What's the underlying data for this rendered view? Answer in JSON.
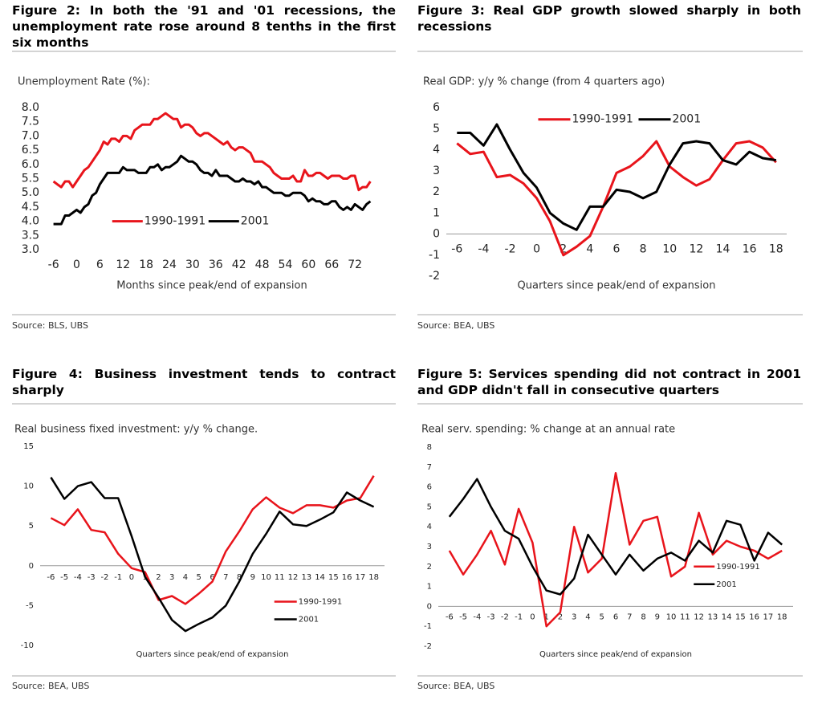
{
  "chart_data": [
    {
      "type": "line",
      "title": "Figure 2: In both the '91 and '01 recessions, the unemployment rate rose around 8 tenths in the first six months",
      "subtitle": "Unemployment Rate (%):",
      "xlabel": "Months since peak/end of expansion",
      "source": "Source: BLS, UBS",
      "legend": "lower-left",
      "x": [
        -6,
        -5,
        -4,
        -3,
        -2,
        -1,
        0,
        1,
        2,
        3,
        4,
        5,
        6,
        7,
        8,
        9,
        10,
        11,
        12,
        13,
        14,
        15,
        16,
        17,
        18,
        19,
        20,
        21,
        22,
        23,
        24,
        25,
        26,
        27,
        28,
        29,
        30,
        31,
        32,
        33,
        34,
        35,
        36,
        37,
        38,
        39,
        40,
        41,
        42,
        43,
        44,
        45,
        46,
        47,
        48,
        49,
        50,
        51,
        52,
        53,
        54,
        55,
        56,
        57,
        58,
        59,
        60,
        61,
        62,
        63,
        64,
        65,
        66,
        67,
        68,
        69,
        70,
        71,
        72,
        73,
        74,
        75,
        76
      ],
      "xlim": [
        -8,
        78
      ],
      "xticks": [
        -6,
        0,
        6,
        12,
        18,
        24,
        30,
        36,
        42,
        48,
        54,
        60,
        66,
        72
      ],
      "ylim": [
        3,
        8
      ],
      "yticks": [
        {
          "value": 3,
          "label": "3.0"
        },
        {
          "value": 3.5,
          "label": "3.5"
        },
        {
          "value": 4,
          "label": "4.0"
        },
        {
          "value": 4.5,
          "label": "4.5"
        },
        {
          "value": 5,
          "label": "5.0"
        },
        {
          "value": 5.5,
          "label": "5.5"
        },
        {
          "value": 6,
          "label": "6.0"
        },
        {
          "value": 6.5,
          "label": "6.5"
        },
        {
          "value": 7,
          "label": "7.0"
        },
        {
          "value": 7.5,
          "label": "7.5"
        },
        {
          "value": 8,
          "label": "8.0"
        }
      ],
      "series": [
        {
          "name": "1990-1991",
          "color": "#e8141b",
          "values": [
            5.4,
            5.3,
            5.2,
            5.4,
            5.4,
            5.2,
            5.4,
            5.6,
            5.8,
            5.9,
            6.1,
            6.3,
            6.5,
            6.8,
            6.7,
            6.9,
            6.9,
            6.8,
            7.0,
            7.0,
            6.9,
            7.2,
            7.3,
            7.4,
            7.4,
            7.4,
            7.6,
            7.6,
            7.7,
            7.8,
            7.7,
            7.6,
            7.6,
            7.3,
            7.4,
            7.4,
            7.3,
            7.1,
            7.0,
            7.1,
            7.1,
            7.0,
            6.9,
            6.8,
            6.7,
            6.8,
            6.6,
            6.5,
            6.6,
            6.6,
            6.5,
            6.4,
            6.1,
            6.1,
            6.1,
            6.0,
            5.9,
            5.7,
            5.6,
            5.5,
            5.5,
            5.5,
            5.6,
            5.4,
            5.4,
            5.8,
            5.6,
            5.6,
            5.7,
            5.7,
            5.6,
            5.5,
            5.6,
            5.6,
            5.6,
            5.5,
            5.5,
            5.6,
            5.6,
            5.1,
            5.2,
            5.2,
            5.4
          ]
        },
        {
          "name": "2001",
          "color": "#000000",
          "values": [
            3.9,
            3.9,
            3.9,
            4.2,
            4.2,
            4.3,
            4.4,
            4.3,
            4.5,
            4.6,
            4.9,
            5.0,
            5.3,
            5.5,
            5.7,
            5.7,
            5.7,
            5.7,
            5.9,
            5.8,
            5.8,
            5.8,
            5.7,
            5.7,
            5.7,
            5.9,
            5.9,
            6.0,
            5.8,
            5.9,
            5.9,
            6.0,
            6.1,
            6.3,
            6.2,
            6.1,
            6.1,
            6.0,
            5.8,
            5.7,
            5.7,
            5.6,
            5.8,
            5.6,
            5.6,
            5.6,
            5.5,
            5.4,
            5.4,
            5.5,
            5.4,
            5.4,
            5.3,
            5.4,
            5.2,
            5.2,
            5.1,
            5.0,
            5.0,
            5.0,
            4.9,
            4.9,
            5.0,
            5.0,
            5.0,
            4.9,
            4.7,
            4.8,
            4.7,
            4.7,
            4.6,
            4.6,
            4.7,
            4.7,
            4.5,
            4.4,
            4.5,
            4.4,
            4.6,
            4.5,
            4.4,
            4.6,
            4.7
          ]
        }
      ]
    },
    {
      "type": "line",
      "title": "Figure 3: Real GDP growth slowed sharply in both recessions",
      "subtitle": "Real GDP: y/y % change (from 4 quarters ago)",
      "xlabel": "Quarters since peak/end of expansion",
      "source": "Source: BEA, UBS",
      "legend": "upper-center",
      "x": [
        -6,
        -5,
        -4,
        -3,
        -2,
        -1,
        0,
        1,
        2,
        3,
        4,
        5,
        6,
        7,
        8,
        9,
        10,
        11,
        12,
        13,
        14,
        15,
        16,
        17,
        18
      ],
      "xlim": [
        -6.8,
        18.8
      ],
      "xticks": [
        -6,
        -4,
        -2,
        0,
        2,
        4,
        6,
        8,
        10,
        12,
        14,
        16,
        18
      ],
      "ylim": [
        -2,
        6
      ],
      "yticks": [
        -2,
        -1,
        0,
        1,
        2,
        3,
        4,
        5,
        6
      ],
      "series": [
        {
          "name": "1990-1991",
          "color": "#e8141b",
          "values": [
            4.3,
            3.8,
            3.9,
            2.7,
            2.8,
            2.4,
            1.7,
            0.6,
            -1.0,
            -0.6,
            -0.1,
            1.3,
            2.9,
            3.2,
            3.7,
            4.4,
            3.2,
            2.7,
            2.3,
            2.6,
            3.5,
            4.3,
            4.4,
            4.1,
            3.4
          ]
        },
        {
          "name": "2001",
          "color": "#000000",
          "values": [
            4.8,
            4.8,
            4.2,
            5.2,
            4.0,
            2.9,
            2.2,
            1.0,
            0.5,
            0.2,
            1.3,
            1.3,
            2.1,
            2.0,
            1.7,
            2.0,
            3.3,
            4.3,
            4.4,
            4.3,
            3.5,
            3.3,
            3.9,
            3.6,
            3.5
          ]
        }
      ]
    },
    {
      "type": "line",
      "title": "Figure 4: Business investment tends to contract sharply",
      "subtitle": "Real business fixed investment: y/y % change.",
      "xlabel": "Quarters since peak/end of expansion",
      "source": "Source: BEA, UBS",
      "legend": "lower-right",
      "x": [
        -6,
        -5,
        -4,
        -3,
        -2,
        -1,
        0,
        1,
        2,
        3,
        4,
        5,
        6,
        7,
        8,
        9,
        10,
        11,
        12,
        13,
        14,
        15,
        16,
        17,
        18
      ],
      "xlim": [
        -6.8,
        18.8
      ],
      "xticks": [
        -6,
        -5,
        -4,
        -3,
        -2,
        -1,
        0,
        1,
        2,
        3,
        4,
        5,
        6,
        7,
        8,
        9,
        10,
        11,
        12,
        13,
        14,
        15,
        16,
        17,
        18
      ],
      "ylim": [
        -10,
        15
      ],
      "yticks": [
        -10,
        -5,
        0,
        5,
        10,
        15
      ],
      "series": [
        {
          "name": "1990-1991",
          "color": "#e8141b",
          "values": [
            6.0,
            5.1,
            7.1,
            4.5,
            4.2,
            1.5,
            -0.3,
            -0.8,
            -4.3,
            -3.8,
            -4.8,
            -3.5,
            -2.0,
            1.8,
            4.3,
            7.1,
            8.6,
            7.3,
            6.6,
            7.6,
            7.6,
            7.3,
            8.2,
            8.5,
            11.3
          ]
        },
        {
          "name": "2001",
          "color": "#000000",
          "values": [
            11.1,
            8.4,
            10.0,
            10.5,
            8.5,
            8.5,
            3.7,
            -1.4,
            -4.0,
            -6.8,
            -8.2,
            -7.3,
            -6.5,
            -5.0,
            -2.0,
            1.5,
            4.0,
            6.8,
            5.2,
            5.0,
            5.8,
            6.7,
            9.2,
            8.2,
            7.4
          ]
        }
      ]
    },
    {
      "type": "line",
      "title": "Figure 5: Services spending did not contract in 2001 and GDP didn't fall in consecutive quarters",
      "subtitle": "Real serv. spending: % change at an annual rate",
      "xlabel": "Quarters since peak/end of expansion",
      "source": "Source: BEA, UBS",
      "legend": "center-right",
      "x": [
        -6,
        -5,
        -4,
        -3,
        -2,
        -1,
        0,
        1,
        2,
        3,
        4,
        5,
        6,
        7,
        8,
        9,
        10,
        11,
        12,
        13,
        14,
        15,
        16,
        17,
        18
      ],
      "xlim": [
        -6.8,
        18.8
      ],
      "xticks": [
        -6,
        -5,
        -4,
        -3,
        -2,
        -1,
        0,
        1,
        2,
        3,
        4,
        5,
        6,
        7,
        8,
        9,
        10,
        11,
        12,
        13,
        14,
        15,
        16,
        17,
        18
      ],
      "ylim": [
        -2,
        8
      ],
      "yticks": [
        -2,
        -1,
        0,
        1,
        2,
        3,
        4,
        5,
        6,
        7,
        8
      ],
      "series": [
        {
          "name": "1990-1991",
          "color": "#e8141b",
          "values": [
            2.8,
            1.6,
            2.6,
            3.8,
            2.1,
            4.9,
            3.2,
            -1.0,
            -0.3,
            4.0,
            1.7,
            2.4,
            6.7,
            3.1,
            4.3,
            4.5,
            1.5,
            2.0,
            4.7,
            2.6,
            3.3,
            3.0,
            2.8,
            2.4,
            2.8
          ]
        },
        {
          "name": "2001",
          "color": "#000000",
          "values": [
            4.5,
            5.4,
            6.4,
            5.0,
            3.8,
            3.4,
            2.0,
            0.8,
            0.6,
            1.4,
            3.6,
            2.6,
            1.6,
            2.6,
            1.8,
            2.4,
            2.7,
            2.3,
            3.3,
            2.7,
            4.3,
            4.1,
            2.3,
            3.7,
            3.1
          ]
        }
      ]
    }
  ]
}
